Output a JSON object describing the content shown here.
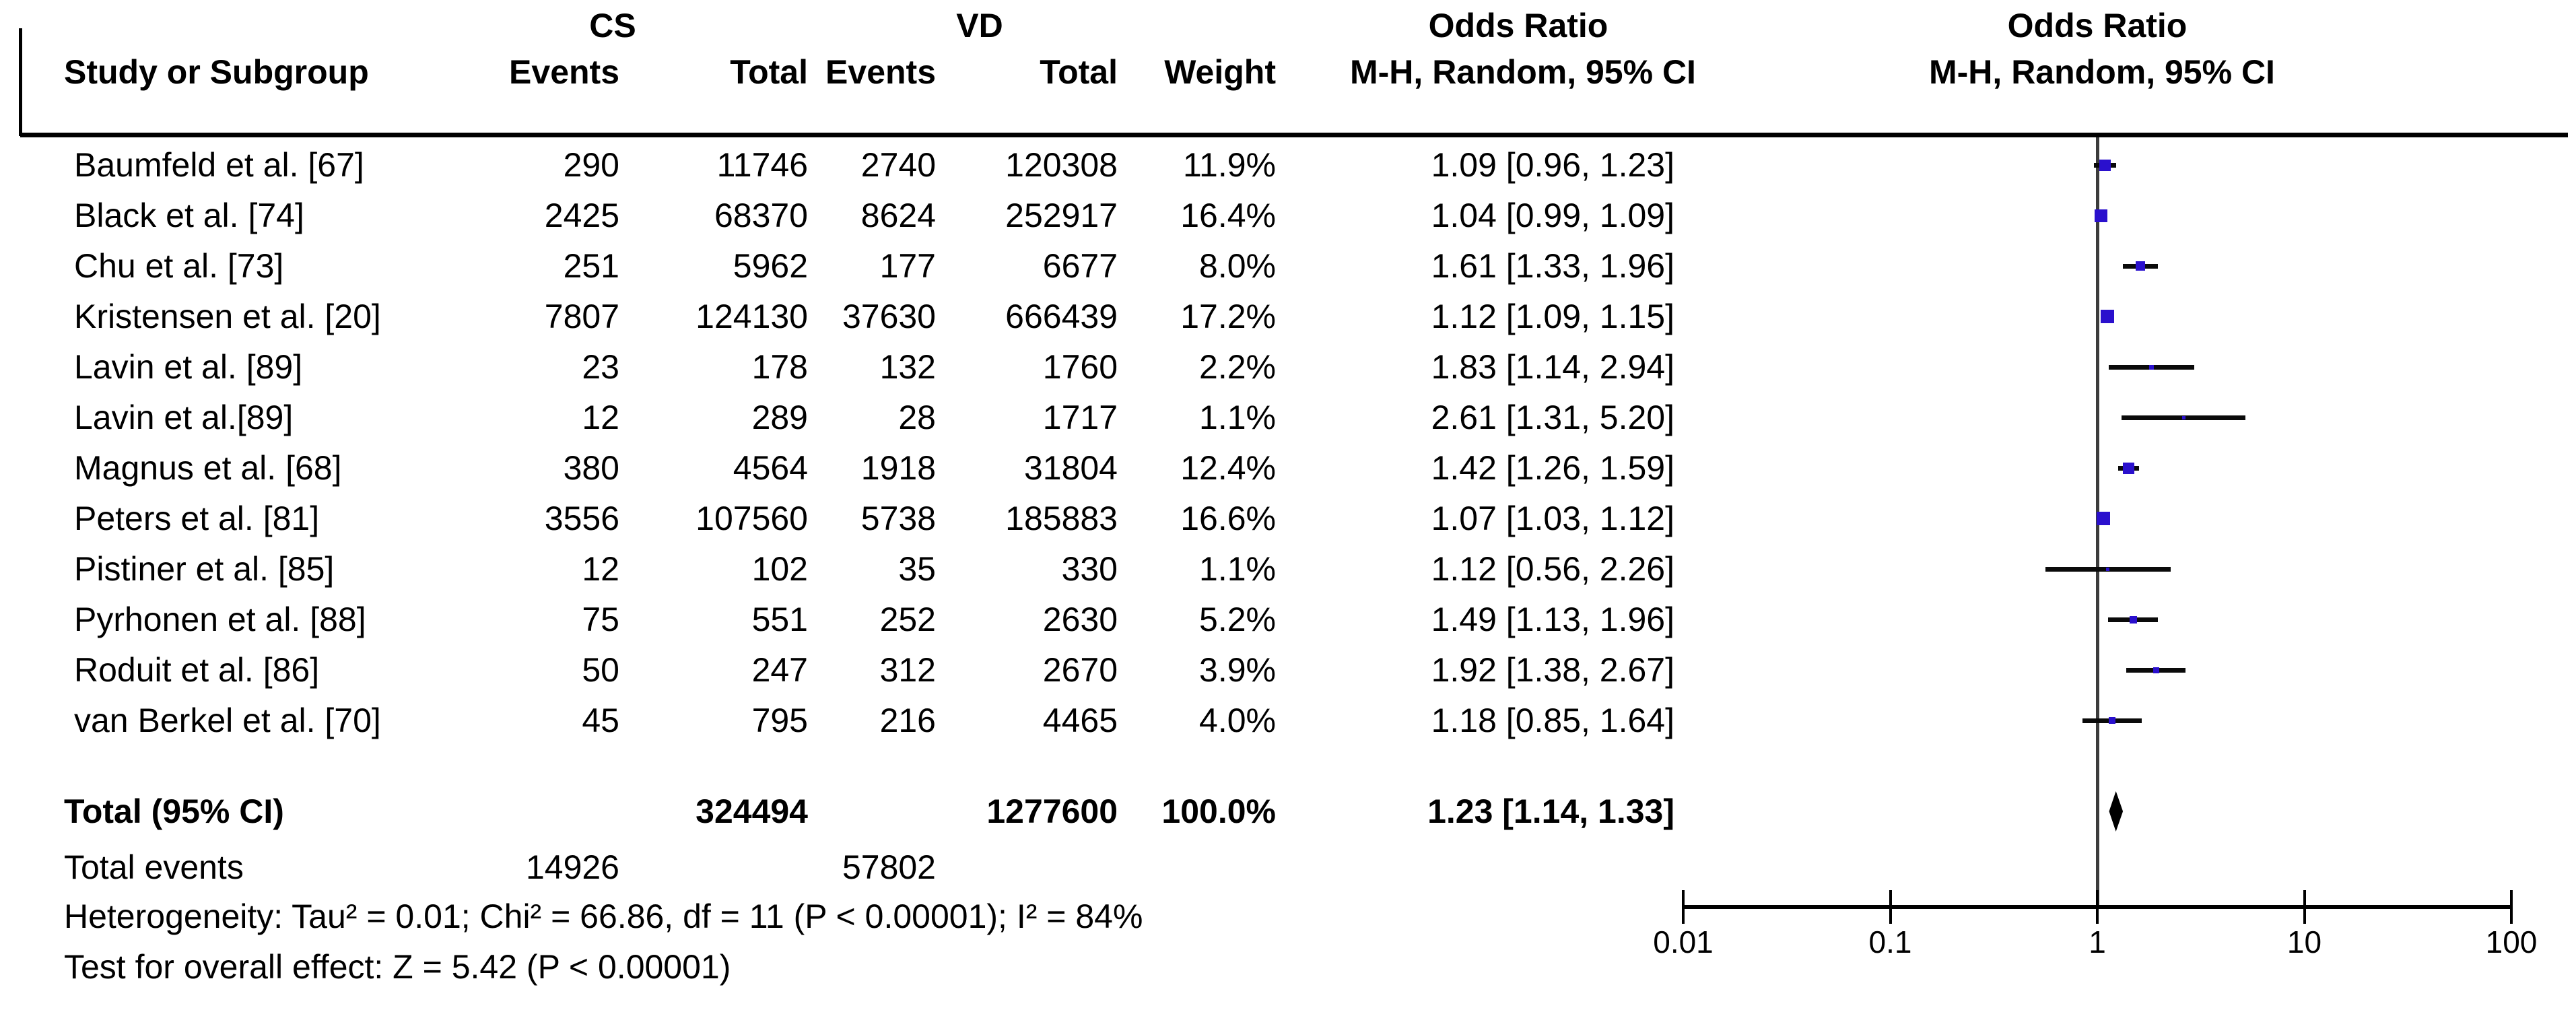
{
  "header": {
    "group1": "CS",
    "group2": "VD",
    "col_study": "Study or Subgroup",
    "col_events": "Events",
    "col_total": "Total",
    "col_weight": "Weight",
    "or_title": "Odds Ratio",
    "or_subtitle": "M-H, Random, 95% CI",
    "plot_title": "Odds Ratio",
    "plot_subtitle": "M-H, Random, 95% CI"
  },
  "chart_data": {
    "type": "forest",
    "effect_measure": "Odds Ratio",
    "method": "M-H, Random, 95% CI",
    "x_scale": "log",
    "axis_ticks": [
      0.01,
      0.1,
      1,
      10,
      100
    ],
    "axis_tick_labels": [
      "0.01",
      "0.1",
      "1",
      "10",
      "100"
    ],
    "studies": [
      {
        "label": "Baumfeld et al. [67]",
        "events1": "290",
        "total1": "11746",
        "events2": "2740",
        "total2": "120308",
        "weight": "11.9%",
        "weight_pct": 11.9,
        "or": 1.09,
        "ci_lo": 0.96,
        "ci_hi": 1.23,
        "or_text": "1.09 [0.96, 1.23]"
      },
      {
        "label": "Black et al. [74]",
        "events1": "2425",
        "total1": "68370",
        "events2": "8624",
        "total2": "252917",
        "weight": "16.4%",
        "weight_pct": 16.4,
        "or": 1.04,
        "ci_lo": 0.99,
        "ci_hi": 1.09,
        "or_text": "1.04 [0.99, 1.09]"
      },
      {
        "label": "Chu et al. [73]",
        "events1": "251",
        "total1": "5962",
        "events2": "177",
        "total2": "6677",
        "weight": "8.0%",
        "weight_pct": 8.0,
        "or": 1.61,
        "ci_lo": 1.33,
        "ci_hi": 1.96,
        "or_text": "1.61 [1.33, 1.96]"
      },
      {
        "label": "Kristensen et al. [20]",
        "events1": "7807",
        "total1": "124130",
        "events2": "37630",
        "total2": "666439",
        "weight": "17.2%",
        "weight_pct": 17.2,
        "or": 1.12,
        "ci_lo": 1.09,
        "ci_hi": 1.15,
        "or_text": "1.12 [1.09, 1.15]"
      },
      {
        "label": "Lavin et al. [89]",
        "events1": "23",
        "total1": "178",
        "events2": "132",
        "total2": "1760",
        "weight": "2.2%",
        "weight_pct": 2.2,
        "or": 1.83,
        "ci_lo": 1.14,
        "ci_hi": 2.94,
        "or_text": "1.83 [1.14, 2.94]"
      },
      {
        "label": "Lavin et al.[89]",
        "events1": "12",
        "total1": "289",
        "events2": "28",
        "total2": "1717",
        "weight": "1.1%",
        "weight_pct": 1.1,
        "or": 2.61,
        "ci_lo": 1.31,
        "ci_hi": 5.2,
        "or_text": "2.61 [1.31, 5.20]"
      },
      {
        "label": "Magnus et al. [68]",
        "events1": "380",
        "total1": "4564",
        "events2": "1918",
        "total2": "31804",
        "weight": "12.4%",
        "weight_pct": 12.4,
        "or": 1.42,
        "ci_lo": 1.26,
        "ci_hi": 1.59,
        "or_text": "1.42 [1.26, 1.59]"
      },
      {
        "label": "Peters et al. [81]",
        "events1": "3556",
        "total1": "107560",
        "events2": "5738",
        "total2": "185883",
        "weight": "16.6%",
        "weight_pct": 16.6,
        "or": 1.07,
        "ci_lo": 1.03,
        "ci_hi": 1.12,
        "or_text": "1.07 [1.03, 1.12]"
      },
      {
        "label": "Pistiner et al. [85]",
        "events1": "12",
        "total1": "102",
        "events2": "35",
        "total2": "330",
        "weight": "1.1%",
        "weight_pct": 1.1,
        "or": 1.12,
        "ci_lo": 0.56,
        "ci_hi": 2.26,
        "or_text": "1.12 [0.56, 2.26]"
      },
      {
        "label": "Pyrhonen et al. [88]",
        "events1": "75",
        "total1": "551",
        "events2": "252",
        "total2": "2630",
        "weight": "5.2%",
        "weight_pct": 5.2,
        "or": 1.49,
        "ci_lo": 1.13,
        "ci_hi": 1.96,
        "or_text": "1.49 [1.13, 1.96]"
      },
      {
        "label": "Roduit et al. [86]",
        "events1": "50",
        "total1": "247",
        "events2": "312",
        "total2": "2670",
        "weight": "3.9%",
        "weight_pct": 3.9,
        "or": 1.92,
        "ci_lo": 1.38,
        "ci_hi": 2.67,
        "or_text": "1.92 [1.38, 2.67]"
      },
      {
        "label": "van Berkel et al. [70]",
        "events1": "45",
        "total1": "795",
        "events2": "216",
        "total2": "4465",
        "weight": "4.0%",
        "weight_pct": 4.0,
        "or": 1.18,
        "ci_lo": 0.85,
        "ci_hi": 1.64,
        "or_text": "1.18 [0.85, 1.64]"
      }
    ],
    "total": {
      "label": "Total (95% CI)",
      "total1": "324494",
      "total2": "1277600",
      "weight": "100.0%",
      "or": 1.23,
      "ci_lo": 1.14,
      "ci_hi": 1.33,
      "or_text": "1.23 [1.14, 1.33]"
    },
    "total_events": {
      "label": "Total events",
      "events1": "14926",
      "events2": "57802"
    },
    "heterogeneity": "Heterogeneity: Tau² = 0.01; Chi² = 66.86, df = 11 (P < 0.00001); I² = 84%",
    "overall_effect": "Test for overall effect: Z = 5.42 (P < 0.00001)",
    "colors": {
      "square": "#2a10cd",
      "ci_line": "#0a0a0a",
      "axis": "#000000",
      "center_line": "#3c3c3c",
      "diamond": "#000000",
      "text": "#000000"
    }
  }
}
